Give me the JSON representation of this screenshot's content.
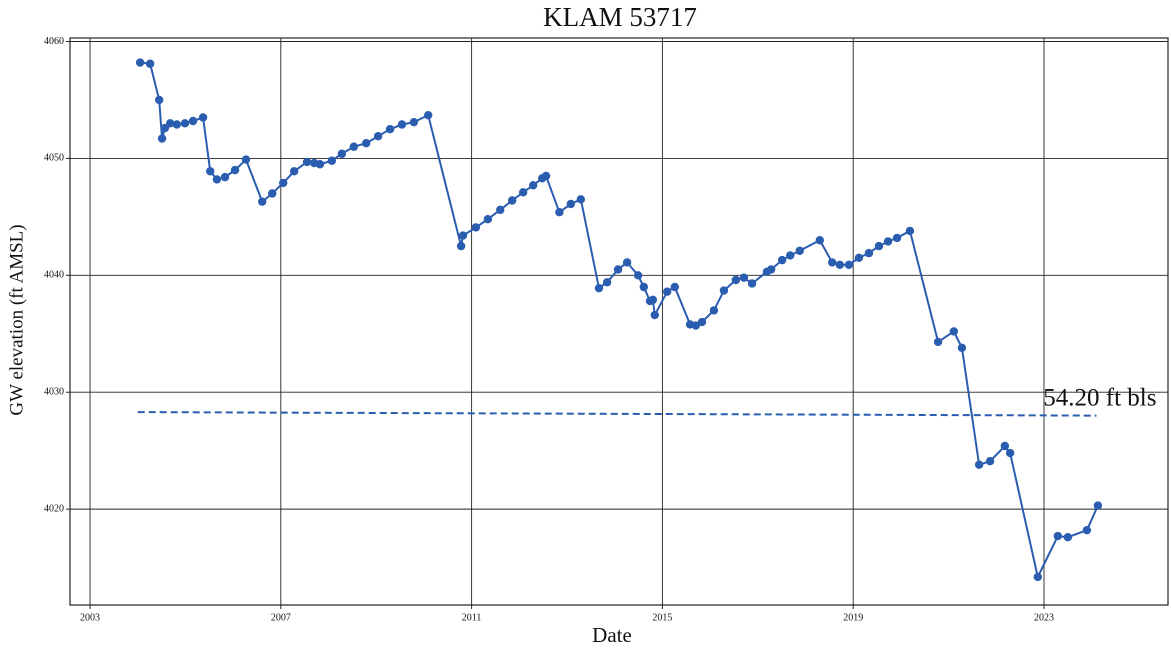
{
  "chart_data": {
    "type": "line",
    "title": "KLAM 53717",
    "x_label": "Date",
    "y_label": "GW elevation (ft AMSL)",
    "color": "#2a5db0",
    "grid": true,
    "xlim": [
      2002.58,
      2025.6
    ],
    "ylim": [
      4011.8,
      4060.3
    ],
    "xticks": [
      2003,
      2007,
      2011,
      2015,
      2019,
      2023
    ],
    "yticks": [
      4020,
      4030,
      4040,
      4050,
      4060
    ],
    "x": [
      2004.05,
      2004.26,
      2004.45,
      2004.51,
      2004.57,
      2004.68,
      2004.82,
      2004.99,
      2005.16,
      2005.37,
      2005.52,
      2005.66,
      2005.83,
      2006.04,
      2006.27,
      2006.61,
      2006.82,
      2007.05,
      2007.28,
      2007.55,
      2007.7,
      2007.82,
      2008.07,
      2008.28,
      2008.53,
      2008.79,
      2009.04,
      2009.29,
      2009.54,
      2009.79,
      2010.09,
      2010.78,
      2010.82,
      2011.09,
      2011.34,
      2011.6,
      2011.85,
      2012.08,
      2012.29,
      2012.48,
      2012.56,
      2012.84,
      2013.08,
      2013.29,
      2013.67,
      2013.84,
      2014.07,
      2014.26,
      2014.49,
      2014.61,
      2014.74,
      2014.8,
      2014.84,
      2015.1,
      2015.26,
      2015.58,
      2015.7,
      2015.83,
      2016.08,
      2016.29,
      2016.54,
      2016.71,
      2016.88,
      2017.19,
      2017.28,
      2017.51,
      2017.68,
      2017.88,
      2018.3,
      2018.56,
      2018.72,
      2018.91,
      2019.12,
      2019.33,
      2019.54,
      2019.73,
      2019.92,
      2020.19,
      2020.78,
      2021.11,
      2021.28,
      2021.64,
      2021.87,
      2022.18,
      2022.29,
      2022.87,
      2023.29,
      2023.5,
      2023.9,
      2024.13
    ],
    "values": [
      4058.2,
      4058.1,
      4055.0,
      4051.7,
      4052.6,
      4053.0,
      4052.9,
      4053.0,
      4053.2,
      4053.5,
      4048.9,
      4048.2,
      4048.4,
      4049.0,
      4049.9,
      4046.3,
      4047.0,
      4047.9,
      4048.9,
      4049.7,
      4049.6,
      4049.5,
      4049.8,
      4050.4,
      4051.0,
      4051.3,
      4051.9,
      4052.5,
      4052.9,
      4053.1,
      4053.7,
      4042.5,
      4043.4,
      4044.1,
      4044.8,
      4045.6,
      4046.4,
      4047.1,
      4047.7,
      4048.3,
      4048.5,
      4045.4,
      4046.1,
      4046.5,
      4038.9,
      4039.4,
      4040.5,
      4041.1,
      4040.0,
      4039.0,
      4037.8,
      4037.9,
      4036.6,
      4038.6,
      4039.0,
      4035.8,
      4035.7,
      4036.0,
      4037.0,
      4038.7,
      4039.6,
      4039.8,
      4039.3,
      4040.3,
      4040.5,
      4041.3,
      4041.7,
      4042.1,
      4043.0,
      4041.1,
      4040.9,
      4040.9,
      4041.5,
      4041.9,
      4042.5,
      4042.9,
      4043.2,
      4043.8,
      4034.3,
      4035.2,
      4033.8,
      4023.8,
      4024.1,
      4025.4,
      4024.8,
      4014.2,
      4017.7,
      4017.6,
      4018.2,
      4020.3
    ],
    "reference_line": {
      "x": [
        2004.0,
        2024.1
      ],
      "values": [
        4028.3,
        4028.0
      ],
      "label": "54.20 ft bls"
    }
  }
}
